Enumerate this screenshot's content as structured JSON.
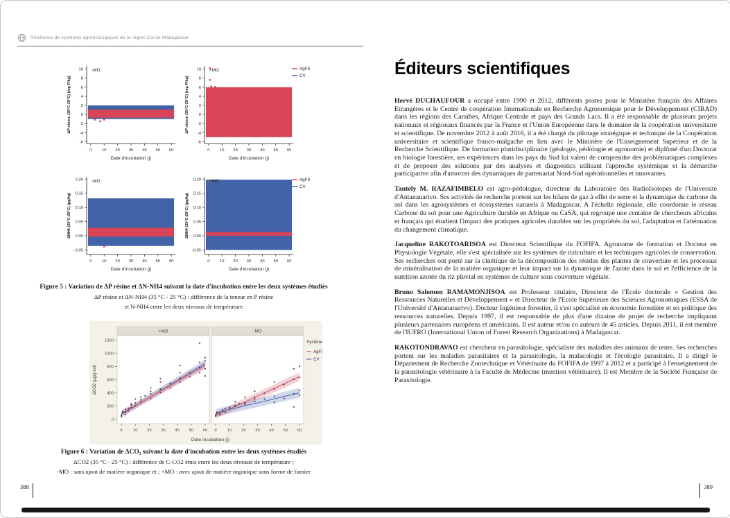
{
  "header": {
    "brand": "Résilience de systèmes agroécologiques de la région Est de Madagascar",
    "logo_icon": "globe-logo-icon"
  },
  "left_page": {
    "figure5": {
      "caption_title": "Figure 5 : Variation de ΔP résine et ΔN-NH4 suivant la date d'incubation entre les deux systèmes étudiés",
      "caption_line2": "ΔP résine et ΔN-NH4 (35 °C - 25 °C) : différence de la teneur en P résine",
      "caption_line3": "et N-NH4 entre les deux niveaux de température"
    },
    "figure6": {
      "caption_title": "Figure 6 : Variation de ΔCO₂ suivant la date d'incubation entre les deux systèmes étudiés",
      "caption_line2": "ΔCO2 (35 °C - 25 °C) : différence de C-CO2 émis entre les deux niveaux de température ;",
      "caption_line3": "-MO : sans ajout de matière organique et ; +MO : avec ajout de matière organique sous forme de fumier"
    },
    "page_number": "388"
  },
  "right_page": {
    "title": "Éditeurs scientifiques",
    "page_number": "389",
    "paragraphs": [
      {
        "name": "Hervé DUCHAUFOUR",
        "text": "a occupé entre 1990 et 2012, différents postes pour le Ministère français des Affaires Etrangères et le Centre de coopération Internationale en Recherche Agronomique pour le Développement (CIRAD) dans les régions des Caraïbes, Afrique Centrale et pays des Grands Lacs. Il a été responsable de plusieurs projets nationaux et régionaux financés par la France et l'Union Européenne dans le domaine de la coopération universitaire et scientifique. De novembre 2012 à août 2016, il a été chargé du pilotage stratégique et technique de la Coopération universitaire et scientifique franco-malgache en lien avec le Ministère de l'Enseignement Supérieur et de la Recherche Scientifique. De formation pluridisciplinaire (géologie, pédologie et agronomie) et diplômé d'un Doctorat en biologie forestière, ses expériences dans les pays du Sud lui valent de comprendre des problématiques complexes et de proposer des solutions par des analyses et diagnostics utilisant l'approche systémique et la démarche participative afin d'amorcer des dynamiques de partenariat Nord-Sud opérationnelles et innovantes."
      },
      {
        "name": "Tantely M. RAZAFIMBELO",
        "text": "est agro-pédologue, directeur du Laboratoire des RadioIsotopes de l'Université d'Antananarivo. Ses activités de recherche portent sur les bilans de gaz à effet de serre et la dynamique du carbone du sol dans les agrosystèmes et écosystèmes naturels à Madagascar. A l'échelle régionale, elle coordonne le réseau Carbone du sol pour une Agriculture durable en Afrique ou CaSA, qui regroupe une centaine de chercheurs africains et français qui étudient l'impact des pratiques agricoles durables sur les propriétés du sol, l'adaptation et l'atténuation du changement climatique."
      },
      {
        "name": "Jacqueline RAKOTOARISOA",
        "text": "est Directeur Scientifique du FOFIFA. Agronome de formation et Docteur en Physiologie Végétale, elle s'est spécialisée sur les systèmes de riziculture et les techniques agricoles de conservation. Ses recherches ont porté sur la cinétique de la décomposition des résidus des plantes de couverture et les processus de minéralisation de la matière organique et leur impact sur la dynamique de l'azote dans le sol et l'efficience de la nutrition azotée du riz pluvial en systèmes de culture sous couverture végétale."
      },
      {
        "name": "Bruno Salomon RAMAMONJISOA",
        "text": "est Professeur titulaire, Directeur de l'Ecole doctorale « Gestion des Ressources Naturelles et Développement » et Directeur de l'Ecole Supérieure des Sciences Agronomiques (ESSA de l'Université d'Antananarivo). Docteur Ingénieur forestier, il s'est spécialisé en économie forestière et en politique des ressources naturelles. Depuis 1997, il est responsable de plus d'une dizaine de projet de recherche impliquant plusieurs partenaires européens et américains. Il est auteur et/ou co auteurs de 45 articles. Depuis 2011, il est membre de l'IUFRO (International Union of Forest Research Organizations) à Madagascar."
      },
      {
        "name": "RAKOTONDRAVAO",
        "text": "est chercheur en parasitologie, spécialiste des maladies des animaux de rente. Ses recherches portent sur les maladies parasitaires et la parasitologie, la malacologie et l'écologie parasitaire. Il a dirigé le Département de Recherche Zootechnique et Vétérinaire du FOFIFA de 1997 à 2012 et a participé à l'enseignement de la parasitologie vétérinaire à la Faculté de Médecine (mention vétérinaire). Il est Membre de la Société Française de Parasitologie."
      }
    ]
  },
  "chart_data": [
    {
      "id": "figure5-deltaP",
      "type": "band",
      "xlabel": "Date d'incubation (j)",
      "ylabel": "ΔP résine (35°C-25°C) (mg P/kg)",
      "xlim": [
        -3,
        63
      ],
      "ylim": [
        -6.4,
        10.7
      ],
      "xticks": [
        0,
        10,
        20,
        30,
        40,
        50,
        60
      ],
      "yticks": [
        10,
        8,
        6,
        4,
        2,
        0,
        -2,
        -4,
        -6
      ],
      "ytick_labels": [
        "10",
        "8",
        "6",
        "4",
        "2",
        "0",
        "-2",
        "-4",
        "-6"
      ],
      "legend": [
        "AgFS",
        "CV"
      ],
      "colors": {
        "AgFS": "#d84458",
        "CV": "#4263a8"
      },
      "panels": [
        {
          "label": "-MO",
          "bands": [
            {
              "series": "CV",
              "x0": -2,
              "x1": 62,
              "y0": -1.0,
              "y1": 2.0
            },
            {
              "series": "AgFS",
              "x0": -2,
              "x1": 62,
              "y0": -0.7,
              "y1": 1.1
            }
          ],
          "points": {
            "AgFS": [
              [
                3,
                -1.15
              ],
              [
                7,
                -1.5
              ],
              [
                10,
                -1.15
              ]
            ],
            "CV": []
          }
        },
        {
          "label": "+MO",
          "bands": [
            {
              "series": "AgFS",
              "x0": -2,
              "x1": 62,
              "y0": -5.0,
              "y1": 6.0
            }
          ],
          "points": {
            "AgFS": [
              [
                1,
                10.2
              ],
              [
                1,
                7.6
              ],
              [
                2,
                6.2
              ],
              [
                5,
                6.1
              ]
            ],
            "CV": []
          }
        }
      ]
    },
    {
      "id": "figure5-deltaNH4",
      "type": "band",
      "xlabel": "Date d'incubation (j)",
      "ylabel": "ΔNH4 (35°C-25°C) (µg/kg)",
      "xlim": [
        -3,
        63
      ],
      "ylim": [
        -0.066,
        0.208
      ],
      "xticks": [
        0,
        10,
        20,
        30,
        40,
        50,
        60
      ],
      "yticks": [
        0.2,
        0.15,
        0.1,
        0.05,
        0.0,
        -0.05
      ],
      "ytick_labels": [
        "0.20",
        "0.15",
        "0.10",
        "0.05",
        "0.00",
        "-0.05"
      ],
      "legend": [
        "AgFS",
        "CV"
      ],
      "colors": {
        "AgFS": "#d84458",
        "CV": "#4263a8"
      },
      "panels": [
        {
          "label": "-MO",
          "bands": [
            {
              "series": "CV",
              "x0": -2,
              "x1": 62,
              "y0": -0.036,
              "y1": 0.132
            },
            {
              "series": "AgFS",
              "x0": -2,
              "x1": 62,
              "y0": -0.003,
              "y1": 0.028
            }
          ],
          "points": {
            "AgFS": [
              [
                10,
                -0.038
              ]
            ],
            "CV": []
          }
        },
        {
          "label": "+MO",
          "bands": [
            {
              "series": "CV",
              "x0": -2,
              "x1": 62,
              "y0": -0.05,
              "y1": 0.198
            },
            {
              "series": "AgFS",
              "x0": -2,
              "x1": 62,
              "y0": 0.0,
              "y1": 0.013
            }
          ],
          "points": {
            "AgFS": [
              [
                2,
                0.19
              ]
            ],
            "CV": []
          }
        }
      ]
    },
    {
      "id": "figure6-deltaCO2",
      "type": "scatter",
      "xlabel": "Date incubation (j)",
      "ylabel": "ΔCO2 (µg/g sol)",
      "legend_title": "Système",
      "legend": [
        "AgFS",
        "CV"
      ],
      "xlim": [
        -3,
        63
      ],
      "ylim": [
        -70,
        1270
      ],
      "xticks": [
        0,
        10,
        20,
        30,
        40,
        50,
        60
      ],
      "yticks": [
        0,
        200,
        400,
        600,
        800,
        1000,
        1200
      ],
      "ytick_labels": [
        "0",
        "200",
        "400",
        "600",
        "800",
        "1000",
        "1200"
      ],
      "colors": {
        "AgFS": "#cf5a66",
        "CV": "#5671b0"
      },
      "ci_colors": {
        "AgFS": "rgba(210,95,110,0.28)",
        "CV": "rgba(90,115,180,0.28)"
      },
      "point_colors": {
        "AgFS": "#71242e",
        "CV": "#222f52"
      },
      "strip_bg": "#e2ddd2",
      "fig_bg": "#f4f1e9",
      "panels": [
        {
          "strip": "+MO",
          "lines": [
            {
              "series": "CV",
              "x0": 0,
              "y0": 70,
              "x1": 60,
              "y1": 845,
              "ci0": 45,
              "ci1": 60
            },
            {
              "series": "AgFS",
              "x0": 0,
              "y0": 85,
              "x1": 60,
              "y1": 815,
              "ci0": 40,
              "ci1": 55
            }
          ],
          "points": {
            "AgFS": [
              [
                0,
                35
              ],
              [
                1,
                95
              ],
              [
                3,
                70
              ],
              [
                3,
                150
              ],
              [
                5,
                125
              ],
              [
                7,
                175
              ],
              [
                7,
                235
              ],
              [
                10,
                205
              ],
              [
                14,
                265
              ],
              [
                14,
                335
              ],
              [
                21,
                315
              ],
              [
                21,
                425
              ],
              [
                28,
                405
              ],
              [
                28,
                565
              ],
              [
                35,
                475
              ],
              [
                42,
                565
              ],
              [
                42,
                705
              ],
              [
                49,
                645
              ],
              [
                56,
                705
              ],
              [
                56,
                865
              ],
              [
                60,
                765
              ],
              [
                60,
                935
              ]
            ],
            "CV": [
              [
                0,
                55
              ],
              [
                1,
                115
              ],
              [
                3,
                105
              ],
              [
                5,
                165
              ],
              [
                7,
                215
              ],
              [
                10,
                245
              ],
              [
                10,
                305
              ],
              [
                14,
                295
              ],
              [
                17,
                355
              ],
              [
                21,
                385
              ],
              [
                21,
                475
              ],
              [
                28,
                455
              ],
              [
                28,
                615
              ],
              [
                35,
                545
              ],
              [
                42,
                625
              ],
              [
                42,
                815
              ],
              [
                49,
                705
              ],
              [
                56,
                785
              ],
              [
                56,
                1155
              ],
              [
                60,
                655
              ],
              [
                60,
                885
              ]
            ]
          }
        },
        {
          "strip": "-MO",
          "lines": [
            {
              "series": "AgFS",
              "x0": 0,
              "y0": 55,
              "x1": 60,
              "y1": 645,
              "ci0": 50,
              "ci1": 65
            },
            {
              "series": "CV",
              "x0": 0,
              "y0": 95,
              "x1": 60,
              "y1": 400,
              "ci0": 55,
              "ci1": 75
            }
          ],
          "points": {
            "AgFS": [
              [
                0,
                45
              ],
              [
                1,
                85
              ],
              [
                3,
                65
              ],
              [
                5,
                125
              ],
              [
                7,
                105
              ],
              [
                10,
                165
              ],
              [
                14,
                205
              ],
              [
                14,
                265
              ],
              [
                21,
                245
              ],
              [
                21,
                335
              ],
              [
                28,
                305
              ],
              [
                28,
                425
              ],
              [
                35,
                395
              ],
              [
                42,
                455
              ],
              [
                42,
                565
              ],
              [
                49,
                525
              ],
              [
                56,
                605
              ],
              [
                56,
                765
              ],
              [
                60,
                635
              ],
              [
                60,
                805
              ]
            ],
            "CV": [
              [
                0,
                65
              ],
              [
                1,
                105
              ],
              [
                3,
                95
              ],
              [
                5,
                135
              ],
              [
                7,
                155
              ],
              [
                10,
                175
              ],
              [
                14,
                195
              ],
              [
                17,
                235
              ],
              [
                21,
                225
              ],
              [
                28,
                265
              ],
              [
                28,
                335
              ],
              [
                35,
                305
              ],
              [
                42,
                345
              ],
              [
                42,
                255
              ],
              [
                49,
                315
              ],
              [
                56,
                185
              ],
              [
                56,
                385
              ],
              [
                60,
                365
              ],
              [
                60,
                435
              ]
            ]
          }
        }
      ]
    }
  ]
}
